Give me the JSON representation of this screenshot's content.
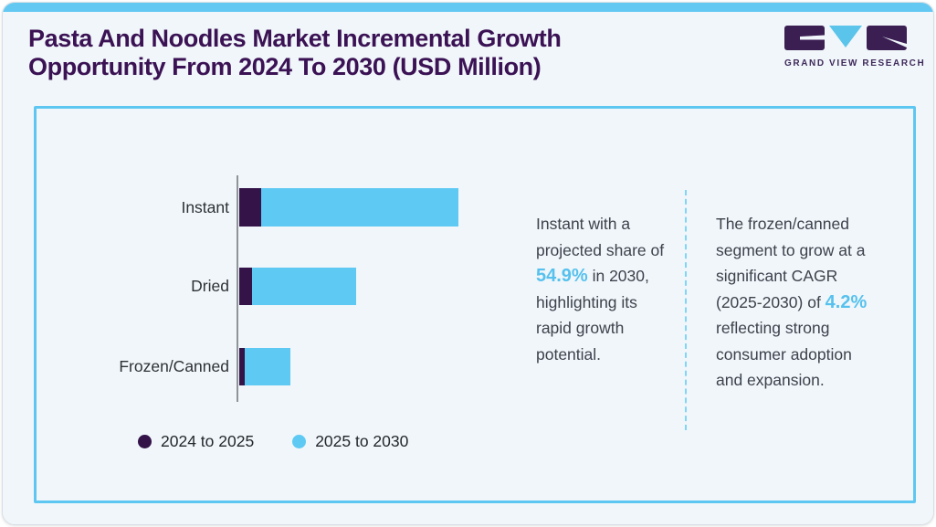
{
  "header": {
    "title_line1": "Pasta And Noodles Market Incremental Growth",
    "title_line2": "Opportunity From 2024 To 2030 (USD Million)",
    "logo_text": "GRAND VIEW RESEARCH"
  },
  "colors": {
    "accent_blue": "#5ecaf3",
    "dark_purple": "#331348",
    "title_purple": "#3b1254",
    "panel_border": "#5ec7f1",
    "highlight_text": "#56c1ee",
    "card_background": "#f0f6fa",
    "axis_gray": "#909398"
  },
  "chart_data": {
    "type": "bar",
    "orientation": "horizontal",
    "stacked": true,
    "title": "Pasta And Noodles Market Incremental Growth Opportunity From 2024 To 2030 (USD Million)",
    "categories": [
      "Instant",
      "Dried",
      "Frozen/Canned"
    ],
    "series": [
      {
        "name": "2024 to 2025",
        "color": "#331348",
        "values": [
          24,
          14,
          6
        ]
      },
      {
        "name": "2025 to 2030",
        "color": "#5ecaf3",
        "values": [
          216,
          114,
          50
        ]
      }
    ],
    "units": "USD Million (no numeric axis shown; values are relative lengths estimated from the chart)",
    "legend_position": "bottom-left",
    "grid": false,
    "axis_labels_shown": false
  },
  "legend": [
    {
      "label": "2024 to 2025",
      "color": "#331348"
    },
    {
      "label": "2025 to 2030",
      "color": "#5ecaf3"
    }
  ],
  "annotations": {
    "left": {
      "pre": "Instant with a projected share of ",
      "highlight": "54.9%",
      "post": " in 2030, highlighting its rapid growth potential."
    },
    "right": {
      "pre": "The frozen/canned segment to grow at a significant CAGR (2025-2030) of ",
      "highlight": "4.2%",
      "post": " reflecting strong consumer adoption and expansion."
    }
  }
}
